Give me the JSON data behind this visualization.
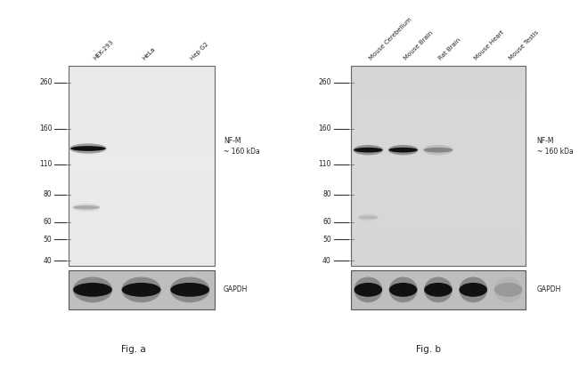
{
  "fig_width": 6.5,
  "fig_height": 4.15,
  "dpi": 100,
  "background_color": "#ffffff",
  "fig_label_a": "Fig. a",
  "fig_label_b": "Fig. b",
  "panel_a": {
    "lanes": [
      "HEK-293",
      "HeLa",
      "Hep G2"
    ],
    "mw_markers": [
      260,
      160,
      110,
      80,
      60,
      50,
      40
    ],
    "main_band_label": "NF-M\n~ 160 kDa",
    "gapdh_label": "GAPDH",
    "blot_bg": "#ebebeb",
    "gapdh_bg": "#bebebe",
    "band_color": "#111111",
    "faint_band_color": "#999999",
    "gapdh_band_color": "#111111"
  },
  "panel_b": {
    "lanes": [
      "Mouse Cerebellum",
      "Mouse Brain",
      "Rat Brain",
      "Mouse Heart",
      "Mouse Testis"
    ],
    "mw_markers": [
      260,
      160,
      110,
      80,
      60,
      50,
      40
    ],
    "main_band_label": "NF-M\n~ 160 kDa",
    "gapdh_label": "GAPDH",
    "blot_bg": "#d8d8d8",
    "gapdh_bg": "#bebebe",
    "band_color": "#111111",
    "faint_band_color": "#aaaaaa",
    "gapdh_band_color": "#111111"
  }
}
